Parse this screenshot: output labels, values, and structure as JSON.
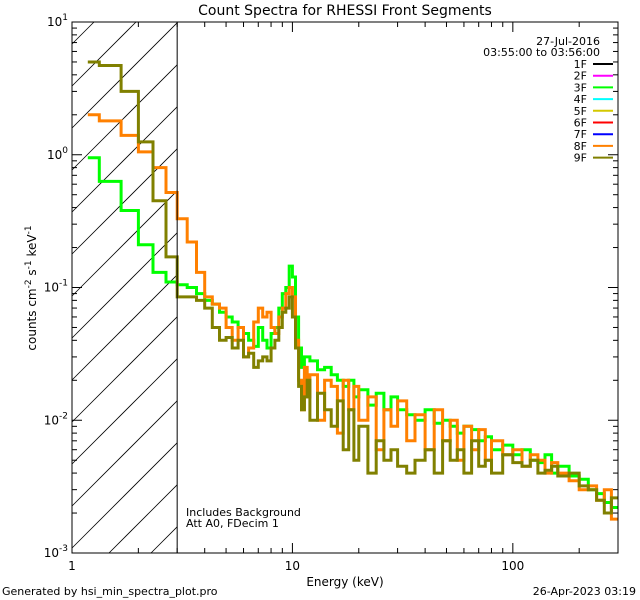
{
  "chart_data": {
    "type": "line",
    "title": "Count Spectra for RHESSI Front Segments",
    "xlabel": "Energy (keV)",
    "ylabel": {
      "base": "counts cm",
      "exp1": "-2",
      "mid": " s",
      "exp2": "-1",
      "end": " keV",
      "exp3": "-1"
    },
    "xscale": "log",
    "yscale": "log",
    "xlim": [
      1,
      300
    ],
    "ylim": [
      0.001,
      10
    ],
    "x_ticks": [
      {
        "value": 1,
        "label": "1"
      },
      {
        "value": 10,
        "label": "10"
      },
      {
        "value": 100,
        "label": "100"
      }
    ],
    "y_ticks": [
      {
        "value": 10,
        "base": "10",
        "exp": "1"
      },
      {
        "value": 1,
        "base": "10",
        "exp": "0"
      },
      {
        "value": 0.1,
        "base": "10",
        "exp": "-1"
      },
      {
        "value": 0.01,
        "base": "10",
        "exp": "-2"
      },
      {
        "value": 0.001,
        "base": "10",
        "exp": "-3"
      }
    ],
    "date": "27-Jul-2016",
    "time_range": "03:55:00 to 03:56:00",
    "attenuator_shaded_below_keV": 3,
    "annotations": [
      "Includes Background",
      "Att A0, FDecim 1"
    ],
    "legend_position": "top-right",
    "legend": [
      {
        "name": "1F",
        "color": "#000000"
      },
      {
        "name": "2F",
        "color": "#ff00ff"
      },
      {
        "name": "3F",
        "color": "#00ff00"
      },
      {
        "name": "4F",
        "color": "#00ffff"
      },
      {
        "name": "5F",
        "color": "#d4c800"
      },
      {
        "name": "6F",
        "color": "#ff0000"
      },
      {
        "name": "7F",
        "color": "#0000ff"
      },
      {
        "name": "8F",
        "color": "#ff8000"
      },
      {
        "name": "9F",
        "color": "#808000"
      }
    ],
    "bin_edges_keV": [
      1.18,
      1.33,
      1.67,
      2.0,
      2.33,
      2.67,
      3.0,
      3.33,
      3.67,
      4.0,
      4.33,
      4.67,
      5.0,
      5.33,
      5.67,
      6.0,
      6.33,
      6.67,
      7.0,
      7.33,
      7.67,
      8.0,
      8.33,
      8.67,
      9.0,
      9.33,
      9.67,
      10.0,
      10.33,
      10.67,
      11.0,
      11.33,
      11.67,
      12,
      13,
      14,
      15,
      16,
      17,
      18,
      19,
      20,
      22,
      24,
      26,
      28,
      30,
      33,
      36,
      40,
      44,
      48,
      52,
      56,
      60,
      65,
      70,
      75,
      80,
      90,
      100,
      110,
      120,
      130,
      140,
      150,
      160,
      180,
      200,
      220,
      240,
      260,
      280,
      300
    ],
    "series": [
      {
        "name": "3F",
        "color": "#00ff00",
        "values": [
          0.95,
          0.63,
          0.38,
          0.21,
          0.13,
          0.11,
          0.105,
          0.1,
          0.09,
          0.08,
          0.075,
          0.065,
          0.06,
          0.055,
          0.05,
          0.045,
          0.04,
          0.036,
          0.05,
          0.04,
          0.035,
          0.045,
          0.05,
          0.07,
          0.09,
          0.1,
          0.145,
          0.12,
          0.06,
          0.035,
          0.025,
          0.03,
          0.03,
          0.028,
          0.024,
          0.025,
          0.022,
          0.02,
          0.018,
          0.02,
          0.015,
          0.017,
          0.013,
          0.016,
          0.012,
          0.015,
          0.012,
          0.011,
          0.01,
          0.012,
          0.0095,
          0.01,
          0.009,
          0.008,
          0.009,
          0.0085,
          0.007,
          0.0075,
          0.006,
          0.0065,
          0.0055,
          0.006,
          0.005,
          0.0048,
          0.0055,
          0.004,
          0.0045,
          0.0038,
          0.0036,
          0.003,
          0.0028,
          0.0024,
          0.0022
        ]
      },
      {
        "name": "8F",
        "color": "#ff8000",
        "values": [
          2.0,
          1.8,
          1.4,
          1.05,
          0.8,
          0.52,
          0.33,
          0.22,
          0.13,
          0.085,
          0.075,
          0.07,
          0.05,
          0.04,
          0.05,
          0.03,
          0.035,
          0.055,
          0.07,
          0.06,
          0.065,
          0.05,
          0.045,
          0.06,
          0.07,
          0.09,
          0.1,
          0.085,
          0.04,
          0.02,
          0.012,
          0.025,
          0.015,
          0.022,
          0.01,
          0.02,
          0.018,
          0.008,
          0.02,
          0.012,
          0.018,
          0.01,
          0.015,
          0.006,
          0.012,
          0.009,
          0.014,
          0.007,
          0.011,
          0.006,
          0.012,
          0.007,
          0.01,
          0.005,
          0.009,
          0.006,
          0.0085,
          0.005,
          0.007,
          0.0055,
          0.006,
          0.0045,
          0.0055,
          0.005,
          0.004,
          0.0048,
          0.004,
          0.0035,
          0.003,
          0.0032,
          0.0025,
          0.003,
          0.0018
        ]
      },
      {
        "name": "9F",
        "color": "#808000",
        "values": [
          5.0,
          4.7,
          3.0,
          1.25,
          0.45,
          0.17,
          0.085,
          0.085,
          0.08,
          0.07,
          0.05,
          0.04,
          0.042,
          0.035,
          0.04,
          0.03,
          0.032,
          0.025,
          0.028,
          0.03,
          0.028,
          0.035,
          0.04,
          0.05,
          0.065,
          0.07,
          0.085,
          0.06,
          0.035,
          0.018,
          0.012,
          0.015,
          0.02,
          0.01,
          0.016,
          0.012,
          0.009,
          0.014,
          0.006,
          0.012,
          0.005,
          0.009,
          0.004,
          0.007,
          0.005,
          0.006,
          0.0045,
          0.004,
          0.005,
          0.006,
          0.004,
          0.007,
          0.005,
          0.006,
          0.004,
          0.007,
          0.0045,
          0.005,
          0.004,
          0.0055,
          0.0048,
          0.0045,
          0.005,
          0.004,
          0.0042,
          0.0045,
          0.0038,
          0.004,
          0.0032,
          0.003,
          0.0025,
          0.002,
          0.0026
        ]
      }
    ]
  },
  "footer": {
    "generated_by": "Generated by hsi_min_spectra_plot.pro",
    "timestamp": "26-Apr-2023 03:19"
  }
}
